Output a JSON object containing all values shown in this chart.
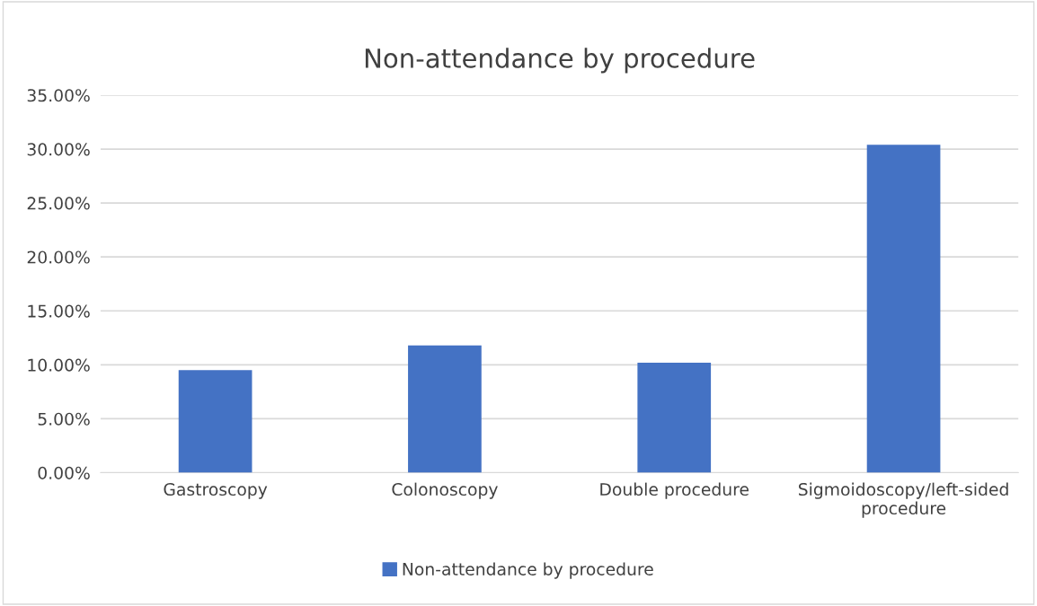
{
  "chart_data": {
    "type": "bar",
    "title": "Non-attendance by procedure",
    "categories": [
      "Gastroscopy",
      "Colonoscopy",
      "Double procedure",
      "Sigmoidoscopy/left-sided procedure"
    ],
    "series": [
      {
        "name": "Non-attendance by procedure",
        "color": "#4472c4",
        "values": [
          9.5,
          11.8,
          10.2,
          30.4
        ]
      }
    ],
    "ylim": [
      0,
      35
    ],
    "yticks": [
      {
        "value": 0,
        "label": "0.00%"
      },
      {
        "value": 5,
        "label": "5.00%"
      },
      {
        "value": 10,
        "label": "10.00%"
      },
      {
        "value": 15,
        "label": "15.00%"
      },
      {
        "value": 20,
        "label": "20.00%"
      },
      {
        "value": 25,
        "label": "25.00%"
      },
      {
        "value": 30,
        "label": "30.00%"
      },
      {
        "value": 35,
        "label": "35.00%"
      }
    ],
    "grid": "y",
    "legend": "bottom"
  }
}
